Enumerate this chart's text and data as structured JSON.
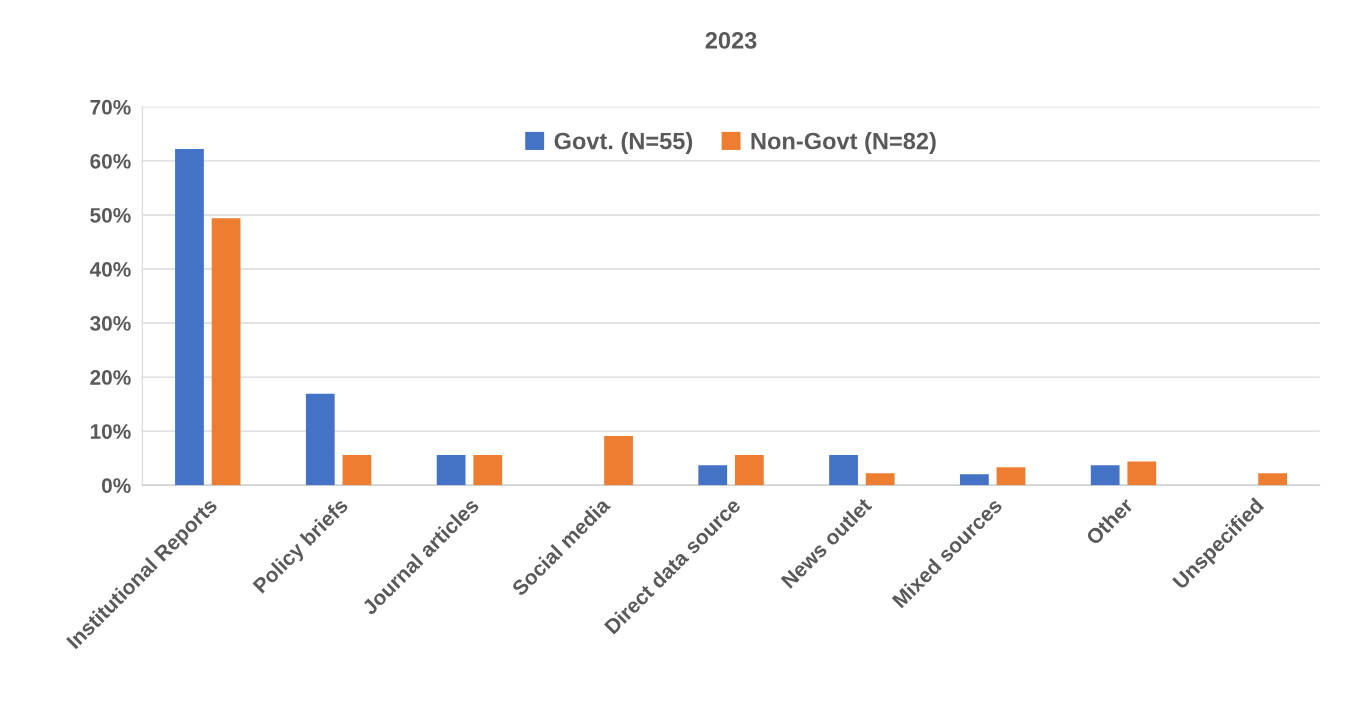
{
  "chart_data": {
    "type": "bar",
    "title": "2023",
    "categories": [
      "Institutional Reports",
      "Policy briefs",
      "Journal articles",
      "Social media",
      "Direct data source",
      "News outlet",
      "Mixed sources",
      "Other",
      "Unspecified"
    ],
    "series": [
      {
        "name": "Govt. (N=55)",
        "color": "#4472c4",
        "values": [
          62.2,
          16.9,
          5.6,
          0,
          3.7,
          5.6,
          2.0,
          3.7,
          0
        ]
      },
      {
        "name": "Non-Govt (N=82)",
        "color": "#ed7d31",
        "values": [
          49.4,
          5.6,
          5.6,
          9.1,
          5.6,
          2.2,
          3.3,
          4.4,
          2.2
        ]
      }
    ],
    "ylim": [
      0,
      70
    ],
    "yticks": [
      {
        "value": 0,
        "label": "0%"
      },
      {
        "value": 10,
        "label": "10%"
      },
      {
        "value": 20,
        "label": "20%"
      },
      {
        "value": 30,
        "label": "30%"
      },
      {
        "value": 40,
        "label": "40%"
      },
      {
        "value": 50,
        "label": "50%"
      },
      {
        "value": 60,
        "label": "60%"
      },
      {
        "value": 70,
        "label": "70%"
      }
    ],
    "grid": "y",
    "legend": "top"
  }
}
